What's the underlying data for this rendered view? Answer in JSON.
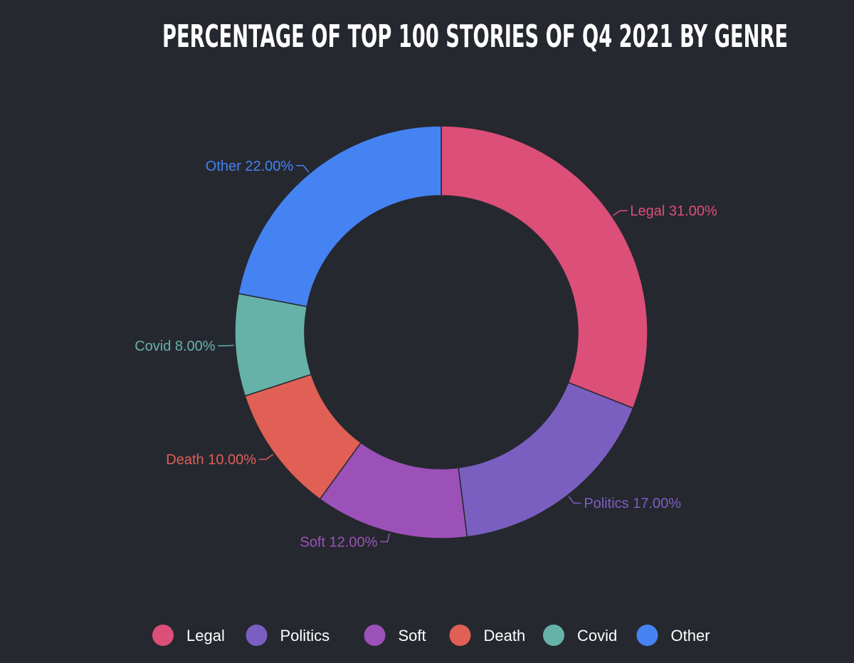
{
  "chart_data": {
    "type": "pie",
    "variant": "donut",
    "title": "PERCENTAGE OF TOP 100 STORIES OF Q4 2021 BY GENRE",
    "categories": [
      "Legal",
      "Politics",
      "Soft",
      "Death",
      "Covid",
      "Other"
    ],
    "values": [
      31,
      17,
      12,
      10,
      8,
      22
    ],
    "value_labels": [
      "31.00%",
      "17.00%",
      "12.00%",
      "10.00%",
      "8.00%",
      "22.00%"
    ],
    "colors": [
      "#dc4f78",
      "#7a5fc0",
      "#9c51b8",
      "#e06055",
      "#66b2a8",
      "#4583f3"
    ],
    "legend_position": "bottom",
    "background": "#262830"
  }
}
